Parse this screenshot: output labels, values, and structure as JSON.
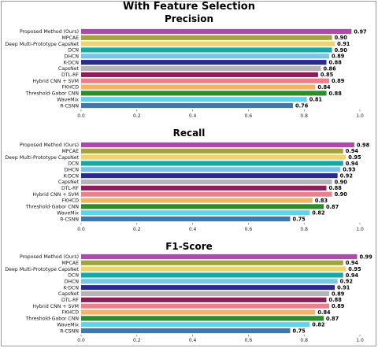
{
  "figure": {
    "title": "With Feature Selection"
  },
  "chart_data": [
    {
      "type": "bar",
      "orientation": "horizontal",
      "title": "Precision",
      "xlim": [
        0,
        1.0
      ],
      "xticks": [
        "0.0",
        "0.2",
        "0.4",
        "0.6",
        "0.8",
        "1.0"
      ],
      "categories": [
        "Proposed Method (Ours)",
        "MPCAE",
        "Deep Multi-Prototype CapsNet",
        "DCN",
        "DHCN",
        "K-DCN",
        "CapsNet",
        "DTL-RF",
        "Hybrid CNN + SVM",
        "FKHCD",
        "Threshold-Gabor CNN",
        "WaveMix",
        "R-CSNN"
      ],
      "values": [
        0.97,
        0.9,
        0.91,
        0.9,
        0.89,
        0.88,
        0.86,
        0.85,
        0.89,
        0.84,
        0.88,
        0.81,
        0.76
      ],
      "labels": [
        "0.97",
        "0.90",
        "0.91",
        "0.90",
        "0.89",
        "0.88",
        "0.86",
        "0.85",
        "0.89",
        "0.84",
        "0.88",
        "0.81",
        "0.76"
      ]
    },
    {
      "type": "bar",
      "orientation": "horizontal",
      "title": "Recall",
      "xlim": [
        0,
        1.0
      ],
      "xticks": [
        "0.0",
        "0.2",
        "0.4",
        "0.6",
        "0.8",
        "1.0"
      ],
      "categories": [
        "Proposed Method (Ours)",
        "MPCAE",
        "Deep Multi-Prototype CapsNet",
        "DCN",
        "DHCN",
        "K-DCN",
        "CapsNet",
        "DTL-RF",
        "Hybrid CNN + SVM",
        "FKHCD",
        "Threshold-Gabor CNN",
        "WaveMix",
        "R-CSNN"
      ],
      "values": [
        0.98,
        0.94,
        0.95,
        0.94,
        0.93,
        0.92,
        0.9,
        0.88,
        0.9,
        0.83,
        0.87,
        0.82,
        0.75
      ],
      "labels": [
        "0.98",
        "0.94",
        "0.95",
        "0.94",
        "0.93",
        "0.92",
        "0.90",
        "0.88",
        "0.90",
        "0.83",
        "0.87",
        "0.82",
        "0.75"
      ]
    },
    {
      "type": "bar",
      "orientation": "horizontal",
      "title": "F1-Score",
      "xlim": [
        0,
        1.0
      ],
      "xticks": [
        "0.0",
        "0.2",
        "0.4",
        "0.6",
        "0.8",
        "1.0"
      ],
      "categories": [
        "Proposed Method (Ours)",
        "MPCAE",
        "Deep Multi-Prototype CapsNet",
        "DCN",
        "DHCN",
        "K-DCN",
        "CapsNet",
        "DTL-RF",
        "Hybrid CNN + SVM",
        "FKHCD",
        "Threshold-Gabor CNN",
        "WaveMix",
        "R-CSNN"
      ],
      "values": [
        0.99,
        0.94,
        0.95,
        0.94,
        0.92,
        0.91,
        0.89,
        0.88,
        0.89,
        0.84,
        0.87,
        0.82,
        0.75
      ],
      "labels": [
        "0.99",
        "0.94",
        "0.95",
        "0.94",
        "0.92",
        "0.91",
        "0.89",
        "0.88",
        "0.89",
        "0.84",
        "0.87",
        "0.82",
        "0.75"
      ]
    }
  ],
  "colors": [
    "#b04aa8",
    "#a3a33b",
    "#ecd56a",
    "#14a8a8",
    "#7ac4e8",
    "#2b2b8c",
    "#b5b5b5",
    "#8b1d5a",
    "#ef7f8e",
    "#f3b36a",
    "#2e8b2e",
    "#5fd3ec",
    "#3f77b0"
  ],
  "grid": false,
  "legend": "none"
}
